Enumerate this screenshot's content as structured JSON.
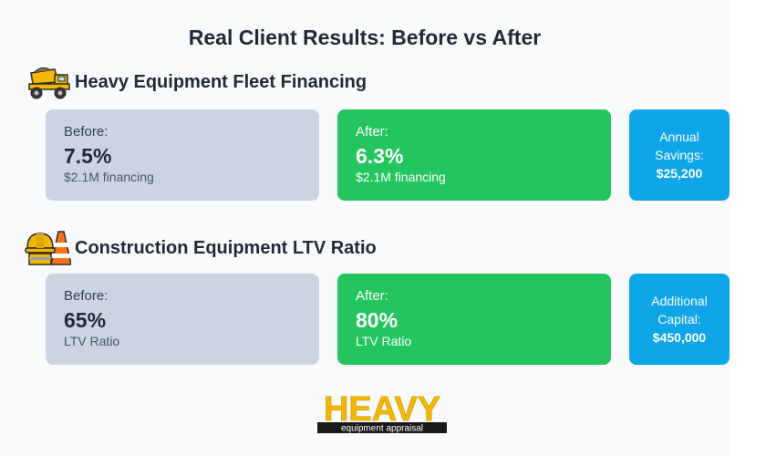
{
  "title": "Real Client Results: Before vs After",
  "sections": [
    {
      "icon": "dump-truck-icon",
      "title": "Heavy Equipment Fleet Financing",
      "before": {
        "label": "Before:",
        "value": "7.5%",
        "note": "$2.1M financing"
      },
      "after": {
        "label": "After:",
        "value": "6.3%",
        "note": "$2.1M financing"
      },
      "summary": {
        "label_line1": "Annual",
        "label_line2": "Savings:",
        "value": "$25,200"
      }
    },
    {
      "icon": "hard-hat-cone-icon",
      "title": "Construction Equipment LTV Ratio",
      "before": {
        "label": "Before:",
        "value": "65%",
        "note": "LTV Ratio"
      },
      "after": {
        "label": "After:",
        "value": "80%",
        "note": "LTV Ratio"
      },
      "summary": {
        "label_line1": "Additional",
        "label_line2": "Capital:",
        "value": "$450,000"
      }
    }
  ],
  "logo": {
    "word": "HEAVY",
    "tagline": "equipment appraisal"
  },
  "colors": {
    "before": "#cbd5e1",
    "after": "#22c55e",
    "summary": "#0ea5e9",
    "brand": "#f5b800"
  }
}
